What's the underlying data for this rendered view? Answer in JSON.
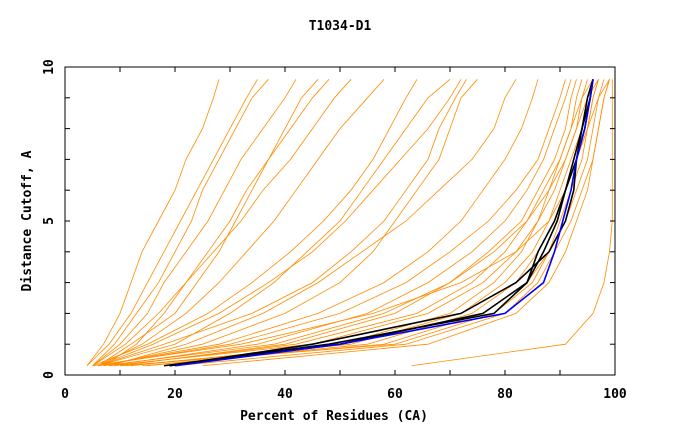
{
  "chart_data": {
    "type": "line",
    "title": "T1034-D1",
    "xlabel": "Percent of Residues (CA)",
    "ylabel": "Distance Cutoff, A",
    "xlim": [
      0,
      100
    ],
    "ylim": [
      0,
      10
    ],
    "x_ticks": [
      "0",
      "20",
      "40",
      "60",
      "80",
      "100"
    ],
    "y_ticks": [
      "0",
      "5",
      "10"
    ],
    "grid": false,
    "colors": {
      "models": "#ff8c00",
      "highlight": "#000000",
      "best": "#0000ff"
    },
    "y": [
      0.3,
      1,
      2,
      3,
      4,
      5,
      6,
      7,
      8,
      9,
      9.6
    ],
    "series": [
      {
        "color": "#ff8c00",
        "x": [
          4,
          8,
          12,
          15,
          18,
          21,
          24,
          27,
          30,
          33,
          35
        ]
      },
      {
        "color": "#ff8c00",
        "x": [
          5,
          10,
          15,
          18,
          22,
          26,
          29,
          32,
          36,
          40,
          42
        ]
      },
      {
        "color": "#ff8c00",
        "x": [
          6,
          12,
          20,
          24,
          28,
          31,
          34,
          37,
          40,
          43,
          46
        ]
      },
      {
        "color": "#ff8c00",
        "x": [
          4,
          7,
          10,
          12,
          14,
          17,
          20,
          22,
          25,
          27,
          28
        ]
      },
      {
        "color": "#ff8c00",
        "x": [
          6,
          14,
          22,
          28,
          33,
          38,
          42,
          46,
          50,
          55,
          58
        ]
      },
      {
        "color": "#ff8c00",
        "x": [
          5,
          9,
          13,
          17,
          20,
          23,
          25,
          28,
          31,
          34,
          37
        ]
      },
      {
        "color": "#ff8c00",
        "x": [
          7,
          13,
          18,
          22,
          26,
          30,
          33,
          37,
          41,
          45,
          48
        ]
      },
      {
        "color": "#ff8c00",
        "x": [
          5,
          11,
          17,
          22,
          27,
          32,
          36,
          41,
          45,
          49,
          52
        ]
      },
      {
        "color": "#ff8c00",
        "x": [
          6,
          20,
          30,
          38,
          44,
          50,
          54,
          58,
          62,
          66,
          70
        ]
      },
      {
        "color": "#ff8c00",
        "x": [
          6,
          18,
          34,
          45,
          52,
          58,
          62,
          66,
          68,
          71,
          73
        ]
      },
      {
        "color": "#ff8c00",
        "x": [
          7,
          25,
          40,
          50,
          56,
          60,
          64,
          68,
          70,
          72,
          75
        ]
      },
      {
        "color": "#ff8c00",
        "x": [
          5,
          15,
          26,
          34,
          41,
          47,
          52,
          56,
          59,
          62,
          64
        ]
      },
      {
        "color": "#ff8c00",
        "x": [
          6,
          16,
          28,
          37,
          45,
          51,
          56,
          61,
          66,
          70,
          72
        ]
      },
      {
        "color": "#ff8c00",
        "x": [
          8,
          22,
          36,
          46,
          54,
          62,
          68,
          74,
          78,
          80,
          82
        ]
      },
      {
        "color": "#ff8c00",
        "x": [
          6,
          28,
          46,
          58,
          66,
          72,
          76,
          80,
          83,
          85,
          86
        ]
      },
      {
        "color": "#ff8c00",
        "x": [
          8,
          35,
          55,
          66,
          74,
          80,
          84,
          87,
          89,
          91,
          92
        ]
      },
      {
        "color": "#ff8c00",
        "x": [
          10,
          40,
          60,
          70,
          77,
          83,
          86,
          89,
          91,
          92,
          93
        ]
      },
      {
        "color": "#ff8c00",
        "x": [
          6,
          30,
          50,
          62,
          70,
          77,
          82,
          86,
          88,
          90,
          91
        ]
      },
      {
        "color": "#ff8c00",
        "x": [
          12,
          50,
          70,
          78,
          83,
          86,
          89,
          91,
          93,
          94,
          95
        ]
      },
      {
        "color": "#ff8c00",
        "x": [
          15,
          55,
          74,
          82,
          86,
          89,
          91,
          93,
          95,
          96,
          97
        ]
      },
      {
        "color": "#ff8c00",
        "x": [
          8,
          45,
          66,
          76,
          82,
          86,
          88,
          90,
          92,
          94,
          96
        ]
      },
      {
        "color": "#ff8c00",
        "x": [
          10,
          60,
          78,
          85,
          88,
          91,
          93,
          95,
          96,
          97,
          98
        ]
      },
      {
        "color": "#ff8c00",
        "x": [
          7,
          38,
          58,
          70,
          78,
          84,
          88,
          91,
          93,
          95,
          97
        ]
      },
      {
        "color": "#ff8c00",
        "x": [
          5,
          32,
          56,
          72,
          82,
          88,
          91,
          93,
          95,
          97,
          99
        ]
      },
      {
        "color": "#ff8c00",
        "x": [
          9,
          42,
          64,
          74,
          80,
          84,
          87,
          90,
          92,
          93,
          94
        ]
      },
      {
        "color": "#ff8c00",
        "x": [
          11,
          52,
          72,
          80,
          85,
          88,
          90,
          92,
          94,
          95,
          96
        ]
      },
      {
        "color": "#ff8c00",
        "x": [
          20,
          62,
          80,
          86,
          89,
          92,
          94,
          96,
          97,
          98,
          99
        ]
      },
      {
        "color": "#ff8c00",
        "x": [
          25,
          66,
          82,
          88,
          91,
          93,
          95,
          96,
          97,
          98,
          99
        ]
      },
      {
        "color": "#ff8c00",
        "x": [
          14,
          58,
          76,
          84,
          88,
          90,
          92,
          94,
          95,
          96,
          97
        ]
      },
      {
        "color": "#ff8c00",
        "x": [
          63,
          91,
          96,
          98,
          99,
          99.5,
          99.5,
          99.5,
          99.5,
          99.5,
          99.5
        ]
      },
      {
        "color": "#000000",
        "x": [
          18,
          48,
          78,
          84,
          87,
          89.5,
          91,
          92.5,
          94,
          95,
          96
        ]
      },
      {
        "color": "#000000",
        "x": [
          19,
          45,
          72,
          82,
          88,
          91,
          92.5,
          93,
          94.5,
          95.5,
          96
        ]
      },
      {
        "color": "#000000",
        "x": [
          19,
          50,
          76,
          84,
          86,
          89,
          91,
          93,
          94,
          95.5,
          96
        ]
      },
      {
        "color": "#0000ff",
        "x": [
          20,
          50,
          80,
          87,
          89,
          90.5,
          92,
          93,
          94.5,
          95.5,
          96
        ]
      }
    ]
  }
}
